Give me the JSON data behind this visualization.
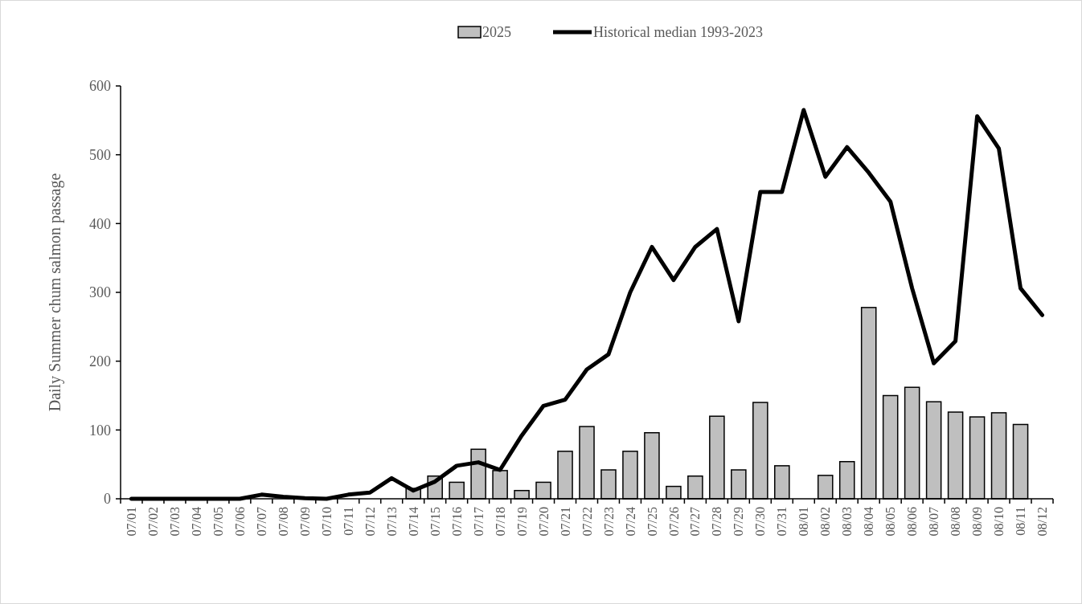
{
  "chart_data": {
    "type": "bar",
    "ylabel": "Daily Summer chum salmon passage",
    "categories": [
      "07/01",
      "07/02",
      "07/03",
      "07/04",
      "07/05",
      "07/06",
      "07/07",
      "07/08",
      "07/09",
      "07/10",
      "07/11",
      "07/12",
      "07/13",
      "07/14",
      "07/15",
      "07/16",
      "07/17",
      "07/18",
      "07/19",
      "07/20",
      "07/21",
      "07/22",
      "07/23",
      "07/24",
      "07/25",
      "07/26",
      "07/27",
      "07/28",
      "07/29",
      "07/30",
      "07/31",
      "08/01",
      "08/02",
      "08/03",
      "08/04",
      "08/05",
      "08/06",
      "08/07",
      "08/08",
      "08/09",
      "08/10",
      "08/11",
      "08/12"
    ],
    "series": [
      {
        "name": "2025",
        "color": "#bfbfbf",
        "values": [
          0,
          0,
          0,
          0,
          0,
          0,
          0,
          0,
          0,
          0,
          0,
          0,
          0,
          15,
          33,
          24,
          72,
          41,
          12,
          24,
          69,
          105,
          42,
          69,
          96,
          18,
          33,
          120,
          42,
          140,
          48,
          0,
          34,
          54,
          278,
          150,
          162,
          141,
          126,
          119,
          125,
          108,
          0
        ]
      },
      {
        "name": "Historical median 1993-2023",
        "type": "line",
        "color": "#000000",
        "values": [
          0,
          0,
          0,
          0,
          0,
          0,
          6,
          3,
          1,
          0,
          6,
          9,
          30,
          12,
          25,
          48,
          53,
          42,
          92,
          135,
          144,
          188,
          210,
          300,
          366,
          318,
          366,
          392,
          258,
          446,
          446,
          565,
          468,
          511,
          474,
          432,
          306,
          197,
          229,
          556,
          509,
          306,
          267
        ]
      }
    ],
    "ylim": [
      0,
      600
    ],
    "yticks": [
      0,
      100,
      200,
      300,
      400,
      500,
      600
    ],
    "legend": "top",
    "grid": false,
    "marker": "none",
    "line_style": "solid"
  }
}
